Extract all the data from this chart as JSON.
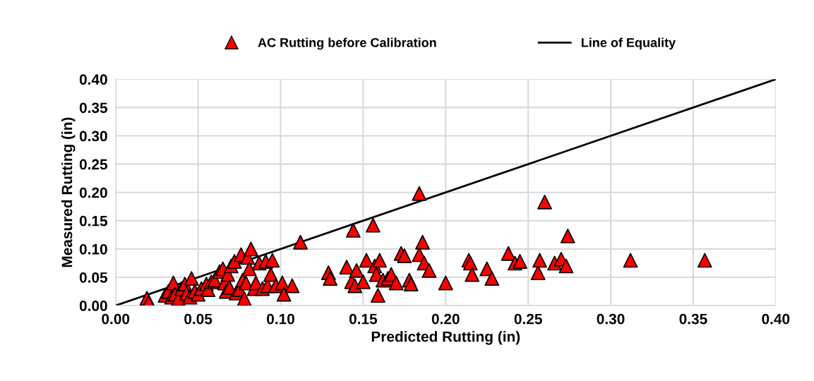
{
  "chart_data": {
    "type": "scatter",
    "xlabel": "Predicted Rutting (in)",
    "ylabel": "Measured Rutting (in)",
    "xlim": [
      0,
      0.4
    ],
    "ylim": [
      0,
      0.4
    ],
    "xticks": [
      {
        "value": 0,
        "label": "0.00"
      },
      {
        "value": 0.05,
        "label": "0.05"
      },
      {
        "value": 0.1,
        "label": "0.10"
      },
      {
        "value": 0.15,
        "label": "0.15"
      },
      {
        "value": 0.2,
        "label": "0.20"
      },
      {
        "value": 0.25,
        "label": "0.25"
      },
      {
        "value": 0.3,
        "label": "0.30"
      },
      {
        "value": 0.35,
        "label": "0.35"
      },
      {
        "value": 0.4,
        "label": "0.40"
      }
    ],
    "yticks": [
      {
        "value": 0,
        "label": "0.00"
      },
      {
        "value": 0.05,
        "label": "0.05"
      },
      {
        "value": 0.1,
        "label": "0.10"
      },
      {
        "value": 0.15,
        "label": "0.15"
      },
      {
        "value": 0.2,
        "label": "0.20"
      },
      {
        "value": 0.25,
        "label": "0.25"
      },
      {
        "value": 0.3,
        "label": "0.30"
      },
      {
        "value": 0.35,
        "label": "0.35"
      },
      {
        "value": 0.4,
        "label": "0.40"
      }
    ],
    "grid": true,
    "legend": "top",
    "series": [
      {
        "name": "AC Rutting before Calibration",
        "marker": "triangle",
        "color": "#ff0000",
        "x": [
          0.019,
          0.02,
          0.03,
          0.032,
          0.034,
          0.035,
          0.036,
          0.038,
          0.04,
          0.042,
          0.043,
          0.045,
          0.046,
          0.048,
          0.05,
          0.052,
          0.055,
          0.056,
          0.058,
          0.06,
          0.063,
          0.065,
          0.066,
          0.067,
          0.068,
          0.069,
          0.07,
          0.072,
          0.073,
          0.075,
          0.076,
          0.077,
          0.078,
          0.079,
          0.08,
          0.081,
          0.082,
          0.084,
          0.085,
          0.087,
          0.089,
          0.091,
          0.092,
          0.094,
          0.095,
          0.097,
          0.101,
          0.102,
          0.107,
          0.112,
          0.129,
          0.13,
          0.14,
          0.143,
          0.144,
          0.145,
          0.146,
          0.15,
          0.152,
          0.156,
          0.157,
          0.158,
          0.159,
          0.16,
          0.162,
          0.165,
          0.167,
          0.17,
          0.173,
          0.175,
          0.178,
          0.179,
          0.184,
          0.184,
          0.186,
          0.187,
          0.19,
          0.2,
          0.214,
          0.215,
          0.216,
          0.225,
          0.228,
          0.238,
          0.242,
          0.245,
          0.256,
          0.257,
          0.26,
          0.266,
          0.27,
          0.273,
          0.274,
          0.312,
          0.357
        ],
        "values": [
          0.013,
          0.005,
          0.018,
          0.025,
          0.015,
          0.04,
          0.02,
          0.012,
          0.03,
          0.038,
          0.022,
          0.015,
          0.048,
          0.025,
          0.02,
          0.03,
          0.038,
          0.028,
          0.042,
          0.045,
          0.06,
          0.065,
          0.04,
          0.025,
          0.055,
          0.032,
          0.07,
          0.078,
          0.022,
          0.028,
          0.09,
          0.045,
          0.012,
          0.04,
          0.085,
          0.065,
          0.1,
          0.03,
          0.04,
          0.075,
          0.03,
          0.078,
          0.035,
          0.055,
          0.08,
          0.035,
          0.04,
          0.02,
          0.035,
          0.112,
          0.058,
          0.048,
          0.068,
          0.042,
          0.133,
          0.035,
          0.062,
          0.042,
          0.08,
          0.142,
          0.07,
          0.055,
          0.018,
          0.08,
          0.045,
          0.048,
          0.055,
          0.04,
          0.092,
          0.088,
          0.045,
          0.038,
          0.09,
          0.198,
          0.112,
          0.075,
          0.062,
          0.04,
          0.08,
          0.075,
          0.055,
          0.065,
          0.048,
          0.092,
          0.075,
          0.078,
          0.058,
          0.08,
          0.183,
          0.075,
          0.082,
          0.07,
          0.123,
          0.08,
          0.08
        ]
      },
      {
        "name": "Line of Equality",
        "type": "line",
        "color": "#000000",
        "x": [
          0,
          0.4
        ],
        "values": [
          0,
          0.4
        ]
      }
    ]
  }
}
